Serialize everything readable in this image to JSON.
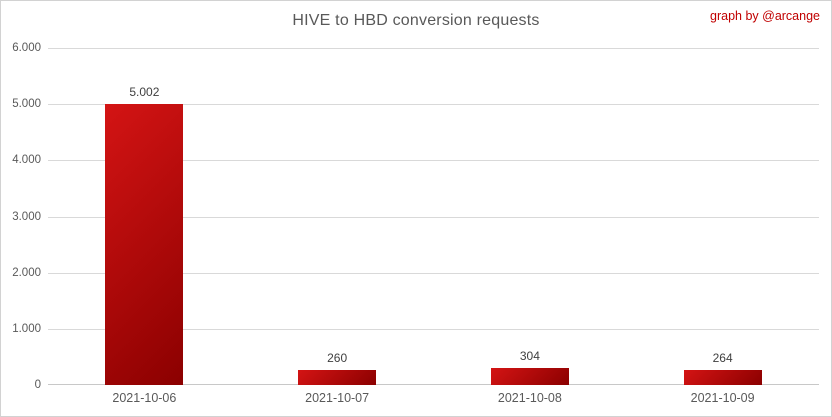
{
  "credit": {
    "text": "graph by @arcange",
    "color": "#c00000"
  },
  "chart_data": {
    "type": "bar",
    "title": "HIVE to HBD conversion requests",
    "xlabel": "",
    "ylabel": "",
    "categories": [
      "2021-10-06",
      "2021-10-07",
      "2021-10-08",
      "2021-10-09"
    ],
    "values": [
      5002,
      260,
      304,
      264
    ],
    "value_labels": [
      "5.002",
      "260",
      "304",
      "264"
    ],
    "ylim": [
      0,
      6000
    ],
    "yticks": [
      0,
      1000,
      2000,
      3000,
      4000,
      5000,
      6000
    ],
    "ytick_labels": [
      "0",
      "1.000",
      "2.000",
      "3.000",
      "4.000",
      "5.000",
      "6.000"
    ],
    "grid": true,
    "legend": "none",
    "colors": {
      "bar_gradient_start": "#d41414",
      "bar_gradient_end": "#8b0000",
      "gridline": "#d9d9d9",
      "title_text": "#595959",
      "axis_text": "#595959",
      "value_text": "#404040",
      "credit_text": "#c00000"
    }
  }
}
